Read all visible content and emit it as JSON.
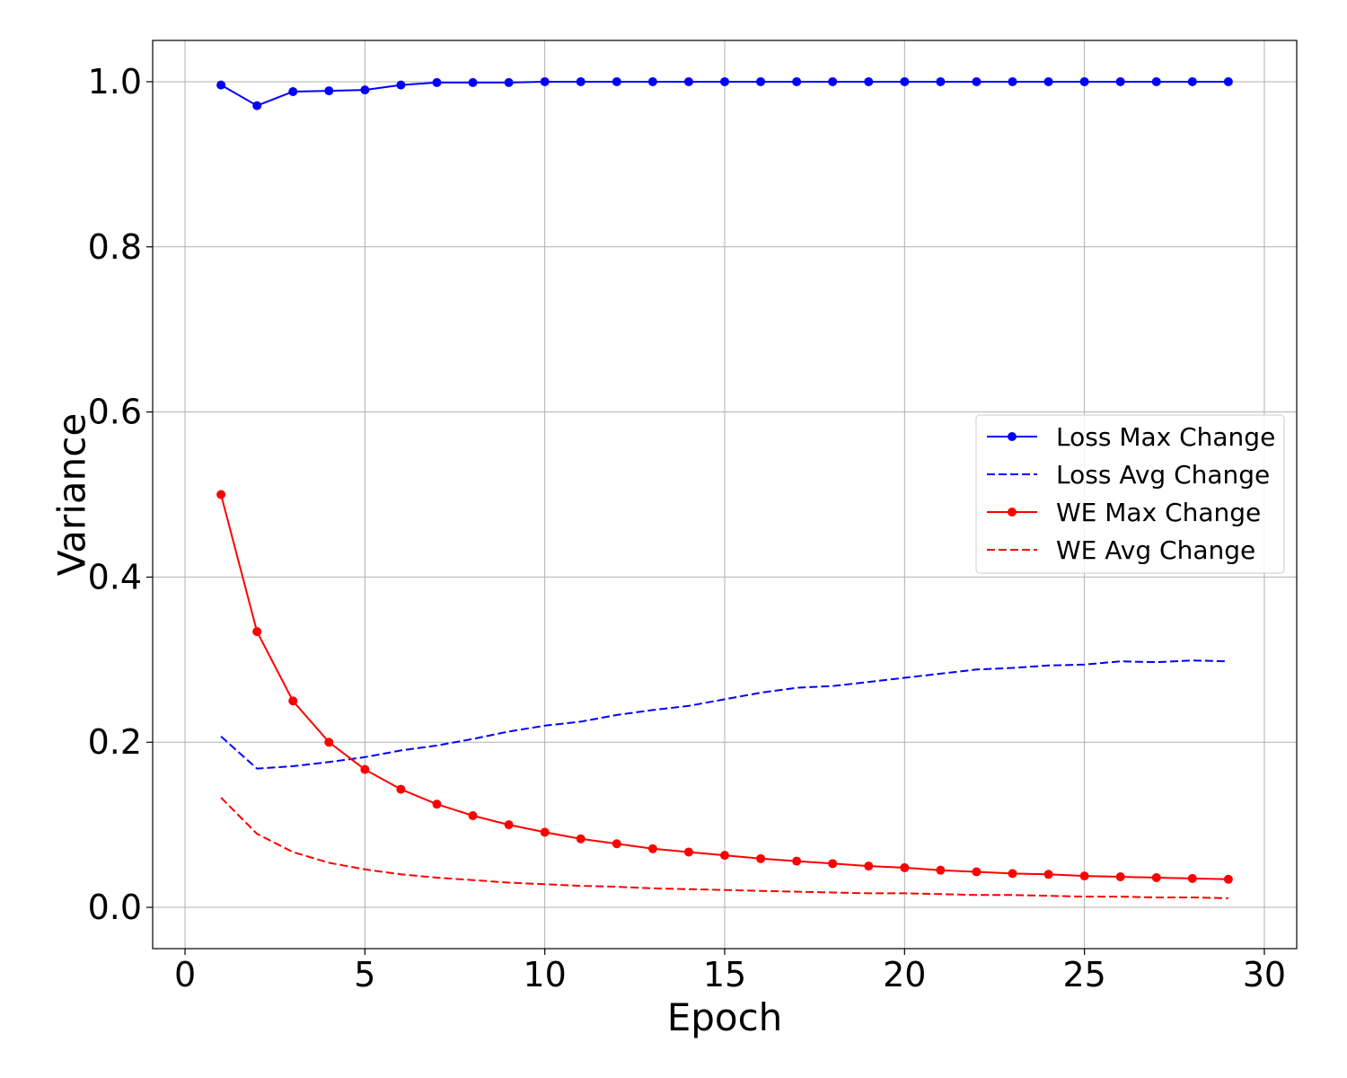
{
  "chart_data": {
    "type": "line",
    "xlabel": "Epoch",
    "ylabel": "Variance",
    "xlim": [
      -0.9,
      30.9
    ],
    "ylim": [
      -0.05,
      1.05
    ],
    "xticks": [
      0,
      5,
      10,
      15,
      20,
      25,
      30
    ],
    "yticks": [
      0.0,
      0.2,
      0.4,
      0.6,
      0.8,
      1.0
    ],
    "xtick_labels": [
      "0",
      "5",
      "10",
      "15",
      "20",
      "25",
      "30"
    ],
    "ytick_labels": [
      "0.0",
      "0.2",
      "0.4",
      "0.6",
      "0.8",
      "1.0"
    ],
    "grid": true,
    "legend_position": "center-right",
    "x": [
      1,
      2,
      3,
      4,
      5,
      6,
      7,
      8,
      9,
      10,
      11,
      12,
      13,
      14,
      15,
      16,
      17,
      18,
      19,
      20,
      21,
      22,
      23,
      24,
      25,
      26,
      27,
      28,
      29
    ],
    "series": [
      {
        "name": "Loss Max Change",
        "color": "#0000ff",
        "style": "solid",
        "marker": true,
        "values": [
          0.996,
          0.971,
          0.988,
          0.989,
          0.99,
          0.996,
          0.999,
          0.999,
          0.999,
          1.0,
          1.0,
          1.0,
          1.0,
          1.0,
          1.0,
          1.0,
          1.0,
          1.0,
          1.0,
          1.0,
          1.0,
          1.0,
          1.0,
          1.0,
          1.0,
          1.0,
          1.0,
          1.0,
          1.0
        ]
      },
      {
        "name": "Loss Avg Change",
        "color": "#0000ff",
        "style": "dashed",
        "marker": false,
        "values": [
          0.207,
          0.168,
          0.171,
          0.176,
          0.182,
          0.19,
          0.196,
          0.204,
          0.213,
          0.22,
          0.225,
          0.233,
          0.239,
          0.244,
          0.252,
          0.26,
          0.266,
          0.268,
          0.273,
          0.278,
          0.283,
          0.288,
          0.29,
          0.293,
          0.294,
          0.298,
          0.297,
          0.299,
          0.298
        ]
      },
      {
        "name": "WE Max Change",
        "color": "#ff0000",
        "style": "solid",
        "marker": true,
        "values": [
          0.5,
          0.334,
          0.25,
          0.2,
          0.167,
          0.143,
          0.125,
          0.111,
          0.1,
          0.091,
          0.083,
          0.077,
          0.071,
          0.067,
          0.063,
          0.059,
          0.056,
          0.053,
          0.05,
          0.048,
          0.045,
          0.043,
          0.041,
          0.04,
          0.038,
          0.037,
          0.036,
          0.035,
          0.034
        ]
      },
      {
        "name": "WE Avg Change",
        "color": "#ff0000",
        "style": "dashed",
        "marker": false,
        "values": [
          0.133,
          0.089,
          0.067,
          0.054,
          0.046,
          0.04,
          0.036,
          0.033,
          0.03,
          0.028,
          0.026,
          0.025,
          0.023,
          0.022,
          0.021,
          0.02,
          0.019,
          0.018,
          0.017,
          0.017,
          0.016,
          0.015,
          0.015,
          0.014,
          0.013,
          0.013,
          0.012,
          0.012,
          0.011
        ]
      }
    ]
  }
}
